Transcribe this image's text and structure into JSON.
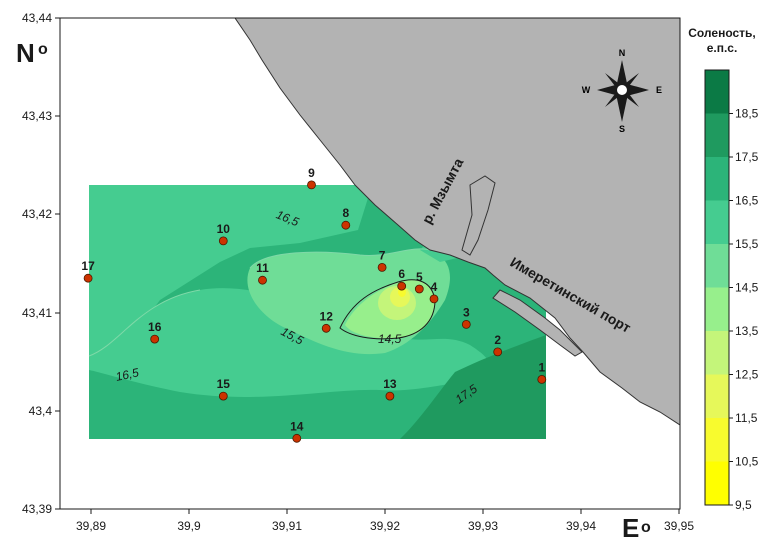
{
  "axes": {
    "y_ticks": [
      "43,44",
      "43,43",
      "43,42",
      "43,41",
      "43,4",
      "43,39"
    ],
    "x_ticks": [
      "39,89",
      "39,9",
      "39,91",
      "39,92",
      "39,93",
      "39,94",
      "39,95"
    ],
    "north_letter": "N",
    "north_sup": "o",
    "east_letter": "E",
    "east_sup": "o"
  },
  "compass": {
    "n": "N",
    "s": "S",
    "e": "E",
    "w": "W"
  },
  "places": {
    "river": "р. Мзымта",
    "port": "Имеретинский порт"
  },
  "stations": [
    {
      "id": "1",
      "lon": 39.936,
      "lat": 43.4032
    },
    {
      "id": "2",
      "lon": 39.9315,
      "lat": 43.406
    },
    {
      "id": "3",
      "lon": 39.9283,
      "lat": 43.4088
    },
    {
      "id": "4",
      "lon": 39.925,
      "lat": 43.4114
    },
    {
      "id": "5",
      "lon": 39.9235,
      "lat": 43.4124
    },
    {
      "id": "6",
      "lon": 39.9217,
      "lat": 43.4127
    },
    {
      "id": "7",
      "lon": 39.9197,
      "lat": 43.4146
    },
    {
      "id": "8",
      "lon": 39.916,
      "lat": 43.4189
    },
    {
      "id": "9",
      "lon": 39.9125,
      "lat": 43.423
    },
    {
      "id": "10",
      "lon": 39.9035,
      "lat": 43.4173
    },
    {
      "id": "11",
      "lon": 39.9075,
      "lat": 43.4133
    },
    {
      "id": "12",
      "lon": 39.914,
      "lat": 43.4084
    },
    {
      "id": "13",
      "lon": 39.9205,
      "lat": 43.4015
    },
    {
      "id": "14",
      "lon": 39.911,
      "lat": 43.3972
    },
    {
      "id": "15",
      "lon": 39.9035,
      "lat": 43.4015
    },
    {
      "id": "16",
      "lon": 39.8965,
      "lat": 43.4073
    },
    {
      "id": "17",
      "lon": 39.8897,
      "lat": 43.4135
    }
  ],
  "contour_labels": [
    "16,5",
    "15,5",
    "16,5",
    "14,5",
    "17,5"
  ],
  "legend": {
    "title_line1": "Соленость,",
    "title_line2": "е.п.с.",
    "ticks": [
      "18,5",
      "17,5",
      "16,5",
      "15,5",
      "14,5",
      "13,5",
      "12,5",
      "11,5",
      "10,5",
      "9,5"
    ],
    "colors": [
      "#0b7a45",
      "#1f9a5f",
      "#2cb479",
      "#45cc90",
      "#6fdd97",
      "#97ef8c",
      "#c4f57a",
      "#e6f85a",
      "#f8fb2e",
      "#ffff00"
    ]
  },
  "colors": {
    "land": "#b3b3b3",
    "station_fill": "#cc3300"
  }
}
